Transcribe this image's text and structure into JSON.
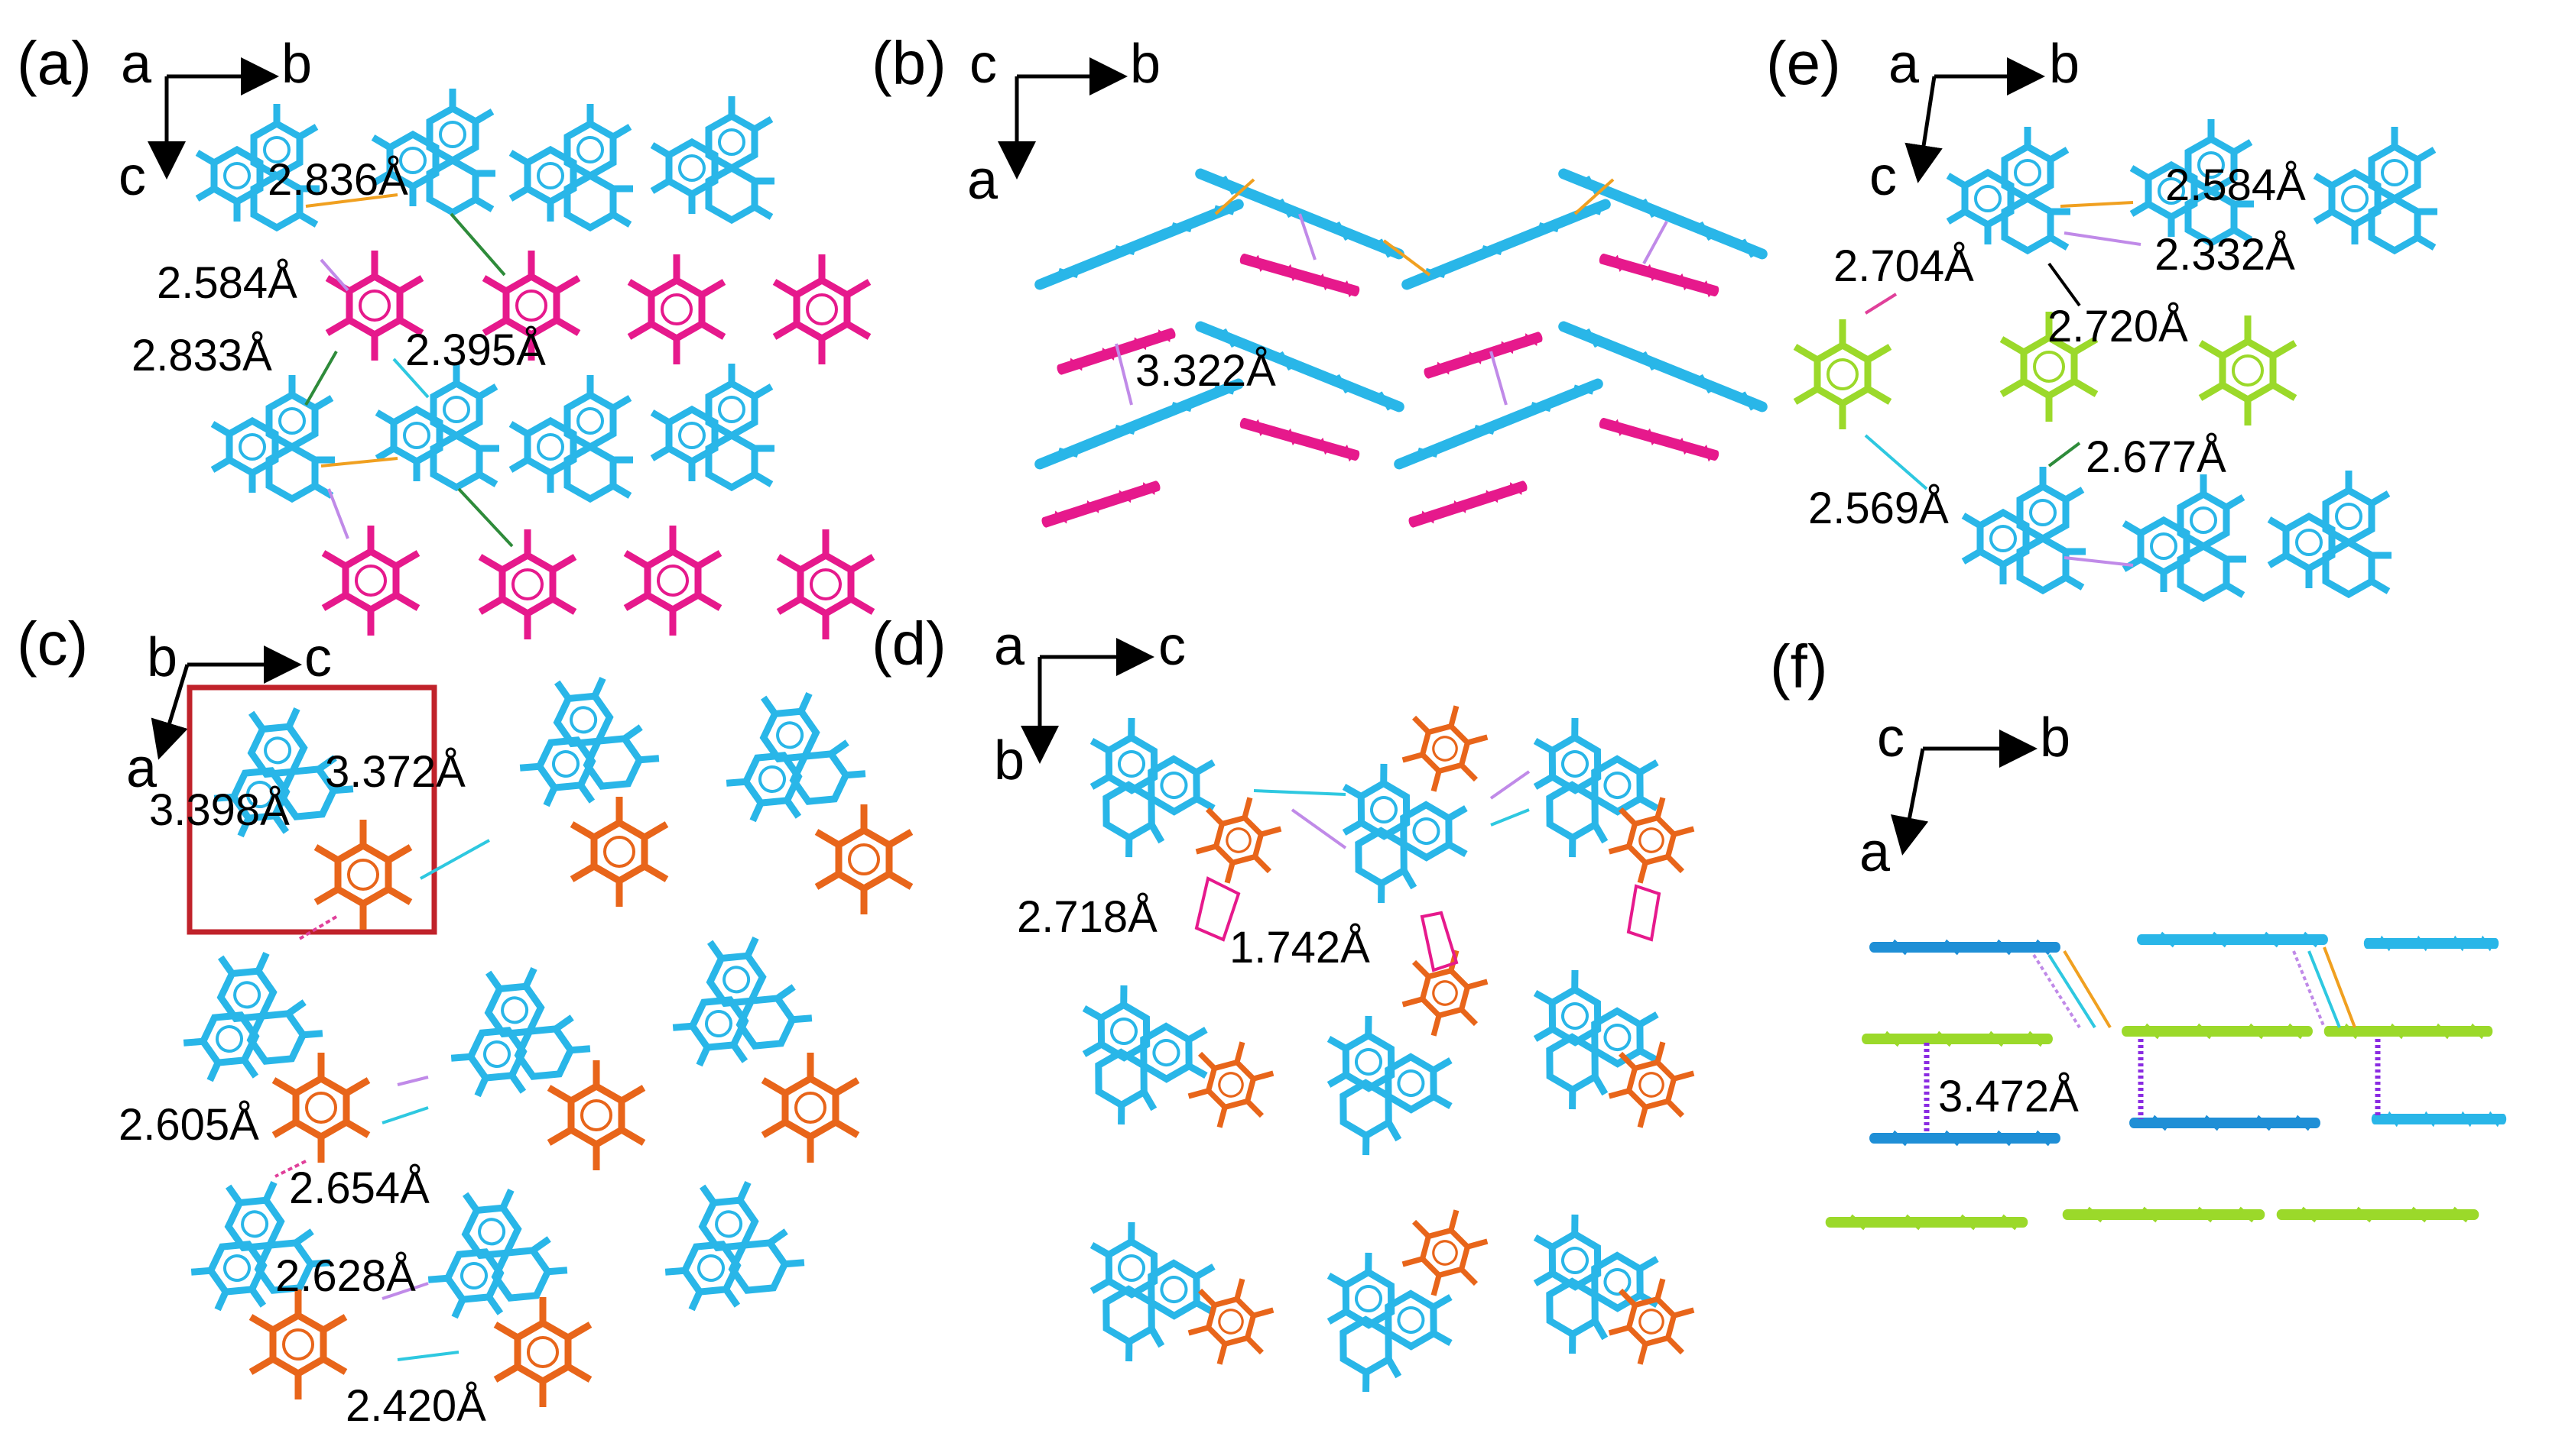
{
  "colors": {
    "blue": "#29b6e8",
    "dark_blue": "#1f8fd6",
    "magenta": "#e6198c",
    "orange": "#e8651a",
    "green": "#9bd92a",
    "interaction_orange": "#f0a020",
    "interaction_violet": "#c08ae8",
    "interaction_green": "#2e8b3a",
    "interaction_cyan": "#2ec8e0",
    "interaction_pink": "#e0409a"
  },
  "panels": {
    "a": {
      "label": "(a)",
      "axes": {
        "right": "b",
        "down": "c",
        "origin": "a"
      },
      "measurements": [
        "2.836Å",
        "2.584Å",
        "2.833Å",
        "2.395Å"
      ]
    },
    "b": {
      "label": "(b)",
      "axes": {
        "right": "b",
        "down": "a",
        "origin": "c"
      },
      "measurements": [
        "3.322Å"
      ]
    },
    "c": {
      "label": "(c)",
      "axes": {
        "right": "c",
        "down": "a",
        "origin": "b"
      },
      "measurements": [
        "3.372Å",
        "3.398Å",
        "2.605Å",
        "2.654Å",
        "2.628Å",
        "2.420Å"
      ]
    },
    "d": {
      "label": "(d)",
      "axes": {
        "right": "c",
        "down": "b",
        "origin": "a"
      },
      "measurements": [
        "2.718Å",
        "1.742Å"
      ]
    },
    "e": {
      "label": "(e)",
      "axes": {
        "right": "b",
        "down": "c",
        "origin": "a"
      },
      "measurements": [
        "2.584Å",
        "2.332Å",
        "2.704Å",
        "2.720Å",
        "2.677Å",
        "2.569Å"
      ]
    },
    "f": {
      "label": "(f)",
      "axes": {
        "right": "b",
        "down": "a",
        "origin": "c"
      },
      "measurements": [
        "3.472Å"
      ]
    }
  }
}
